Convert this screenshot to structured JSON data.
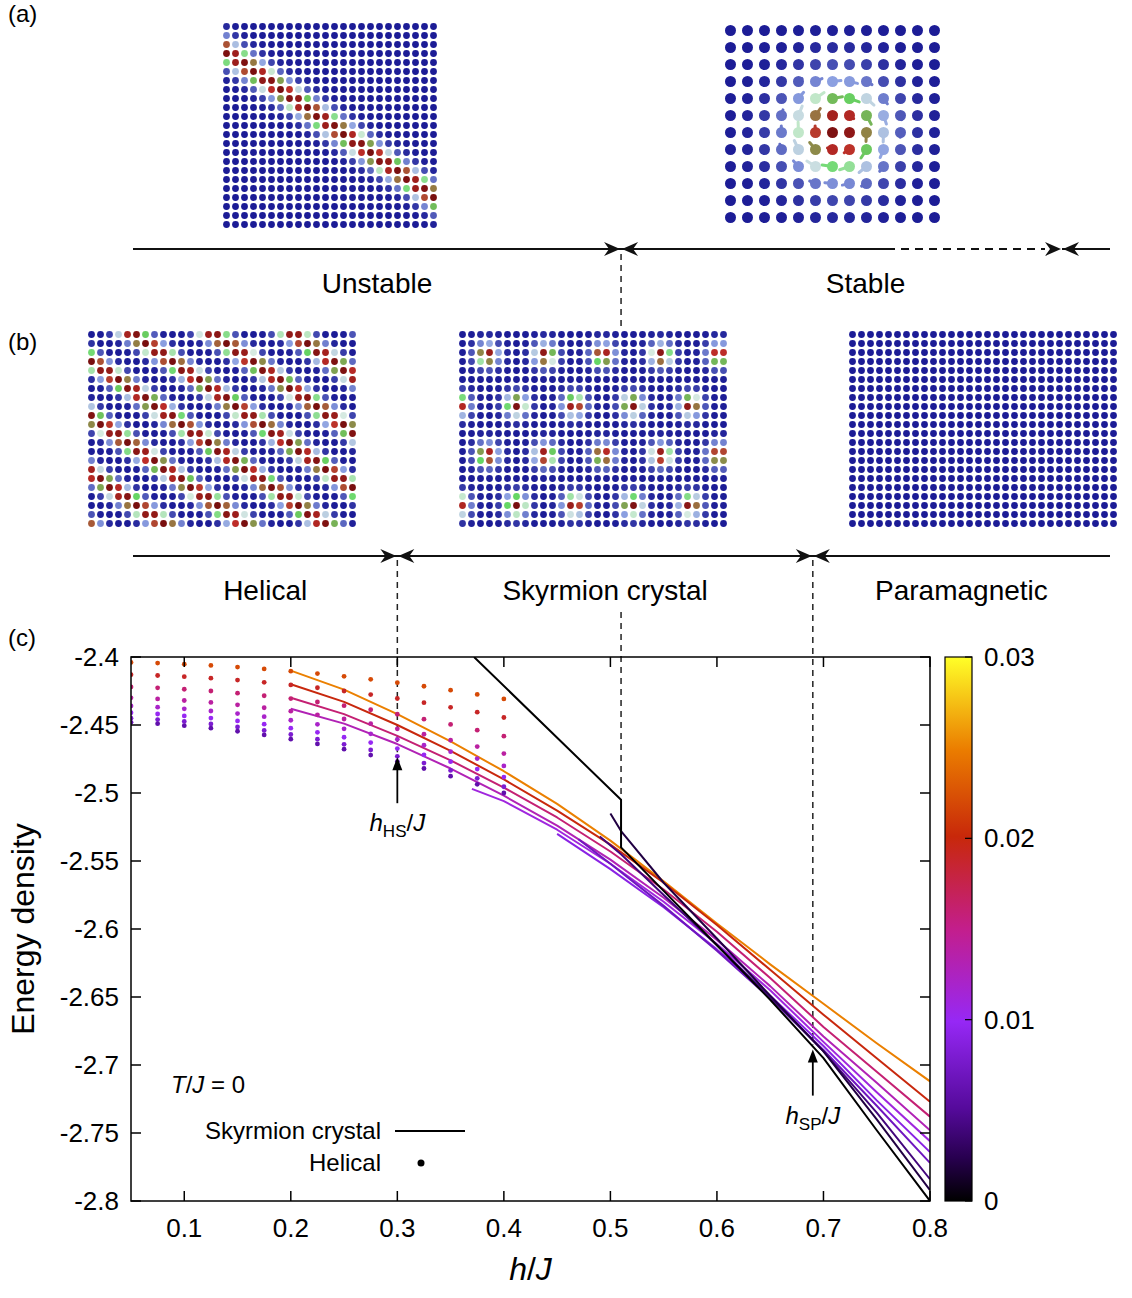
{
  "panels": {
    "a": {
      "letter": "(a)",
      "regions": [
        "Unstable",
        "Stable"
      ],
      "boundaries": [
        {
          "h": 0.51,
          "energy": -2.505
        }
      ]
    },
    "b": {
      "letter": "(b)",
      "regions": [
        "Helical",
        "Skyrmion crystal",
        "Paramagnetic"
      ],
      "boundaries": [
        {
          "h": 0.3,
          "energy": -2.47
        },
        {
          "h": 0.69,
          "energy": -2.685
        }
      ]
    },
    "c": {
      "letter": "(c)"
    }
  },
  "chart_data": {
    "type": "line",
    "x_label": "h/J",
    "y_label": "Energy density",
    "xlim": [
      0.05,
      0.8
    ],
    "ylim": [
      -2.8,
      -2.4
    ],
    "xticks": [
      0.1,
      0.2,
      0.3,
      0.4,
      0.5,
      0.6,
      0.7,
      0.8
    ],
    "yticks": [
      -2.4,
      -2.45,
      -2.5,
      -2.55,
      -2.6,
      -2.65,
      -2.7,
      -2.75,
      -2.8
    ],
    "grid": false,
    "legend": "lower left",
    "colorbar": {
      "range": [
        0,
        0.03
      ],
      "ticks": [
        0,
        0.01,
        0.02,
        0.03
      ]
    },
    "annotations": [
      {
        "text": "T/J = 0"
      },
      {
        "main": "h",
        "sub": "HS",
        "after": "/J",
        "x": 0.3,
        "y": -2.47
      },
      {
        "main": "h",
        "sub": "SP",
        "after": "/J",
        "x": 0.69,
        "y": -2.685
      }
    ],
    "series": [
      {
        "name": "Skyrmion crystal",
        "type": "line",
        "z": 0.025,
        "x": [
          0.2,
          0.25,
          0.3,
          0.35,
          0.4,
          0.45,
          0.5,
          0.55,
          0.6,
          0.65,
          0.7,
          0.75,
          0.8
        ],
        "values": [
          -2.41,
          -2.424,
          -2.442,
          -2.462,
          -2.484,
          -2.508,
          -2.535,
          -2.565,
          -2.596,
          -2.626,
          -2.655,
          -2.684,
          -2.712
        ]
      },
      {
        "name": "Skyrmion crystal",
        "type": "line",
        "z": 0.02,
        "x": [
          0.2,
          0.25,
          0.3,
          0.35,
          0.4,
          0.45,
          0.5,
          0.55,
          0.6,
          0.65,
          0.7,
          0.75,
          0.8
        ],
        "values": [
          -2.42,
          -2.433,
          -2.45,
          -2.469,
          -2.49,
          -2.513,
          -2.538,
          -2.566,
          -2.597,
          -2.63,
          -2.663,
          -2.695,
          -2.727
        ]
      },
      {
        "name": "Skyrmion crystal",
        "type": "line",
        "z": 0.016,
        "x": [
          0.2,
          0.25,
          0.3,
          0.35,
          0.4,
          0.45,
          0.5,
          0.55,
          0.6,
          0.65,
          0.7,
          0.75,
          0.8
        ],
        "values": [
          -2.43,
          -2.442,
          -2.458,
          -2.476,
          -2.496,
          -2.518,
          -2.543,
          -2.571,
          -2.602,
          -2.636,
          -2.672,
          -2.705,
          -2.738
        ]
      },
      {
        "name": "Skyrmion crystal",
        "type": "line",
        "z": 0.013,
        "x": [
          0.2,
          0.25,
          0.3,
          0.35,
          0.4,
          0.45,
          0.5,
          0.55,
          0.6,
          0.65,
          0.7,
          0.75,
          0.8
        ],
        "values": [
          -2.438,
          -2.449,
          -2.464,
          -2.482,
          -2.502,
          -2.524,
          -2.549,
          -2.577,
          -2.608,
          -2.642,
          -2.679,
          -2.713,
          -2.748
        ]
      },
      {
        "name": "Skyrmion crystal",
        "type": "line",
        "z": 0.011,
        "x": [
          0.37,
          0.4,
          0.45,
          0.5,
          0.55,
          0.6,
          0.65,
          0.7,
          0.75,
          0.8
        ],
        "values": [
          -2.497,
          -2.506,
          -2.527,
          -2.552,
          -2.58,
          -2.611,
          -2.645,
          -2.683,
          -2.72,
          -2.756
        ]
      },
      {
        "name": "Skyrmion crystal",
        "type": "line",
        "z": 0.009,
        "x": [
          0.45,
          0.5,
          0.55,
          0.6,
          0.65,
          0.7,
          0.75,
          0.8
        ],
        "values": [
          -2.53,
          -2.556,
          -2.584,
          -2.615,
          -2.649,
          -2.686,
          -2.726,
          -2.764
        ]
      },
      {
        "name": "Skyrmion crystal",
        "type": "line",
        "z": 0.007,
        "x": [
          0.47,
          0.5,
          0.55,
          0.6,
          0.65,
          0.7,
          0.75,
          0.8
        ],
        "values": [
          -2.534,
          -2.552,
          -2.583,
          -2.616,
          -2.651,
          -2.689,
          -2.73,
          -2.772
        ]
      },
      {
        "name": "Skyrmion crystal",
        "type": "line",
        "z": 0.004,
        "x": [
          0.49,
          0.51,
          0.55,
          0.6,
          0.65,
          0.7,
          0.75,
          0.8
        ],
        "values": [
          -2.532,
          -2.545,
          -2.575,
          -2.612,
          -2.65,
          -2.69,
          -2.735,
          -2.784
        ]
      },
      {
        "name": "Skyrmion crystal",
        "type": "line",
        "z": 0.002,
        "x": [
          0.5,
          0.51,
          0.55,
          0.6,
          0.65,
          0.7,
          0.75,
          0.8
        ],
        "values": [
          -2.515,
          -2.528,
          -2.566,
          -2.607,
          -2.649,
          -2.69,
          -2.74,
          -2.792
        ]
      },
      {
        "name": "Skyrmion crystal",
        "type": "line",
        "z": 0,
        "x": [
          0.372,
          0.51,
          0.51,
          0.55,
          0.6,
          0.65,
          0.7,
          0.75,
          0.8
        ],
        "values": [
          -2.4,
          -2.505,
          -2.54,
          -2.572,
          -2.612,
          -2.652,
          -2.695,
          -2.748,
          -2.8
        ]
      },
      {
        "name": "Helical",
        "type": "scatter",
        "marker": "dot",
        "z": 0.022,
        "x": [
          0.05,
          0.075,
          0.1,
          0.125,
          0.15,
          0.175,
          0.2,
          0.225,
          0.25,
          0.275,
          0.3,
          0.325,
          0.35,
          0.375,
          0.4
        ],
        "values": [
          -2.404,
          -2.4045,
          -2.4053,
          -2.4062,
          -2.4074,
          -2.4088,
          -2.4104,
          -2.4122,
          -2.4142,
          -2.4164,
          -2.4189,
          -2.4215,
          -2.4244,
          -2.4275,
          -2.4308
        ]
      },
      {
        "name": "Helical",
        "type": "scatter",
        "marker": "dot",
        "z": 0.019,
        "x": [
          0.05,
          0.075,
          0.1,
          0.125,
          0.15,
          0.175,
          0.2,
          0.225,
          0.25,
          0.275,
          0.3,
          0.325,
          0.35,
          0.375,
          0.4
        ],
        "values": [
          -2.413,
          -2.4136,
          -2.4145,
          -2.4156,
          -2.417,
          -2.4186,
          -2.4205,
          -2.4226,
          -2.425,
          -2.4276,
          -2.4305,
          -2.4336,
          -2.437,
          -2.4406,
          -2.4445
        ]
      },
      {
        "name": "Helical",
        "type": "scatter",
        "marker": "dot",
        "z": 0.016,
        "x": [
          0.05,
          0.075,
          0.1,
          0.125,
          0.15,
          0.175,
          0.2,
          0.225,
          0.25,
          0.275,
          0.3,
          0.325,
          0.35,
          0.375,
          0.4
        ],
        "values": [
          -2.422,
          -2.4227,
          -2.4237,
          -2.425,
          -2.4266,
          -2.4285,
          -2.4306,
          -2.4331,
          -2.4358,
          -2.4388,
          -2.4421,
          -2.4457,
          -2.4496,
          -2.4538,
          -2.4582
        ]
      },
      {
        "name": "Helical",
        "type": "scatter",
        "marker": "dot",
        "z": 0.014,
        "x": [
          0.05,
          0.075,
          0.1,
          0.125,
          0.15,
          0.175,
          0.2,
          0.225,
          0.25,
          0.275,
          0.3,
          0.325,
          0.35,
          0.375,
          0.4
        ],
        "values": [
          -2.43,
          -2.4308,
          -2.432,
          -2.4334,
          -2.4352,
          -2.4373,
          -2.4398,
          -2.4425,
          -2.4456,
          -2.449,
          -2.4528,
          -2.4568,
          -2.4612,
          -2.4659,
          -2.471
        ]
      },
      {
        "name": "Helical",
        "type": "scatter",
        "marker": "dot",
        "z": 0.012,
        "x": [
          0.05,
          0.075,
          0.1,
          0.125,
          0.15,
          0.175,
          0.2,
          0.225,
          0.25,
          0.275,
          0.3,
          0.325,
          0.35,
          0.375,
          0.4
        ],
        "values": [
          -2.436,
          -2.4369,
          -2.4381,
          -2.4397,
          -2.4416,
          -2.4439,
          -2.4465,
          -2.4495,
          -2.4528,
          -2.4565,
          -2.4605,
          -2.4649,
          -2.4696,
          -2.4747,
          -2.4801
        ]
      },
      {
        "name": "Helical",
        "type": "scatter",
        "marker": "dot",
        "z": 0.01,
        "x": [
          0.05,
          0.075,
          0.1,
          0.125,
          0.15,
          0.175,
          0.2,
          0.225,
          0.25,
          0.275,
          0.3,
          0.325,
          0.35,
          0.375,
          0.4
        ],
        "values": [
          -2.441,
          -2.4419,
          -2.4433,
          -2.4449,
          -2.447,
          -2.4494,
          -2.4523,
          -2.4554,
          -2.459,
          -2.4629,
          -2.4673,
          -2.4719,
          -2.477,
          -2.4824,
          -2.4883
        ]
      },
      {
        "name": "Helical",
        "type": "scatter",
        "marker": "dot",
        "z": 0.008,
        "x": [
          0.05,
          0.075,
          0.1,
          0.125,
          0.15,
          0.175,
          0.2,
          0.225,
          0.25,
          0.275,
          0.3,
          0.325,
          0.35,
          0.375,
          0.4
        ],
        "values": [
          -2.445,
          -2.446,
          -2.4474,
          -2.4492,
          -2.4514,
          -2.454,
          -2.457,
          -2.4604,
          -2.4642,
          -2.4684,
          -2.473,
          -2.478,
          -2.4834,
          -2.4892,
          -2.4954
        ]
      },
      {
        "name": "Helical",
        "type": "scatter",
        "marker": "dot",
        "z": 0.006,
        "x": [
          0.05,
          0.075,
          0.1,
          0.125,
          0.15,
          0.175,
          0.2,
          0.225,
          0.25,
          0.275,
          0.3,
          0.325,
          0.35,
          0.375,
          0.4
        ],
        "values": [
          -2.448,
          -2.449,
          -2.4505,
          -2.4523,
          -2.4546,
          -2.4573,
          -2.4604,
          -2.4639,
          -2.4678,
          -2.4721,
          -2.4769,
          -2.482,
          -2.4876,
          -2.4936,
          -2.5
        ]
      }
    ]
  }
}
